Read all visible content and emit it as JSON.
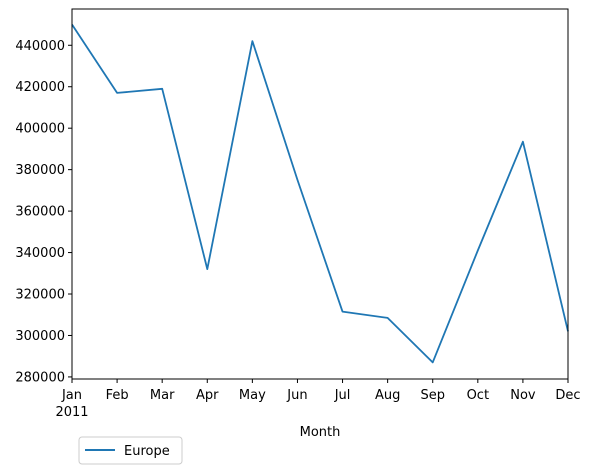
{
  "chart_data": {
    "type": "line",
    "title": "",
    "xlabel": "Month",
    "ylabel": "",
    "year_label": "2011",
    "categories": [
      "Jan",
      "Feb",
      "Mar",
      "Apr",
      "May",
      "Jun",
      "Jul",
      "Aug",
      "Sep",
      "Oct",
      "Nov",
      "Dec"
    ],
    "series": [
      {
        "name": "Europe",
        "color": "#1f77b4",
        "values": [
          450000,
          417000,
          419000,
          332000,
          442000,
          375000,
          311500,
          308500,
          287000,
          341000,
          393500,
          302000
        ]
      }
    ],
    "ylim": [
      279000,
      457500
    ],
    "yticks": [
      280000,
      300000,
      320000,
      340000,
      360000,
      380000,
      400000,
      420000,
      440000
    ],
    "ytick_labels": [
      "280000",
      "300000",
      "320000",
      "340000",
      "360000",
      "380000",
      "400000",
      "420000",
      "440000"
    ],
    "legend_position": "below-left",
    "grid": false
  }
}
